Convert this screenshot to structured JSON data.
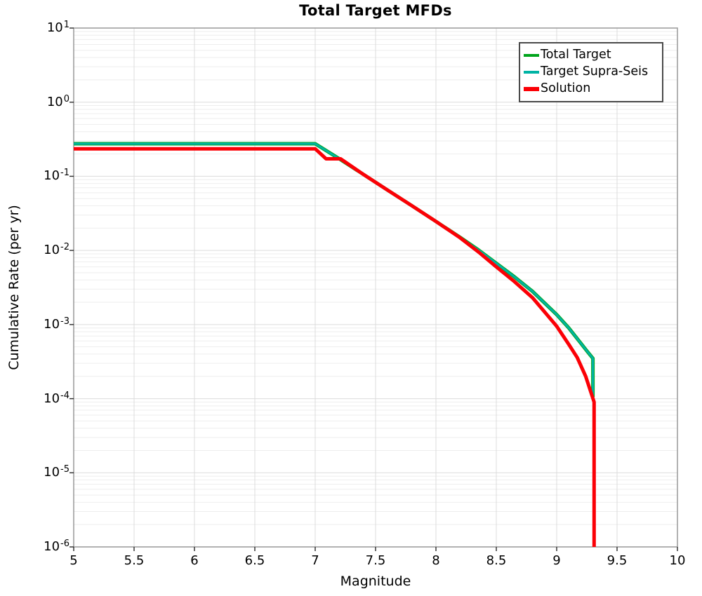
{
  "title": "Total Target MFDs",
  "axes": {
    "xlabel": "Magnitude",
    "ylabel": "Cumulative Rate (per yr)",
    "x_tick_labels": [
      "5",
      "5.5",
      "6",
      "6.5",
      "7",
      "7.5",
      "8",
      "8.5",
      "9",
      "9.5",
      "10"
    ],
    "x_tick_values": [
      5,
      5.5,
      6,
      6.5,
      7,
      7.5,
      8,
      8.5,
      9,
      9.5,
      10
    ],
    "y_tick_base": "10",
    "y_tick_exponents": [
      1,
      0,
      -1,
      -2,
      -3,
      -4,
      -5,
      -6
    ],
    "xlim": [
      5,
      10
    ],
    "ylim": [
      1e-06,
      10
    ],
    "y_scale": "log"
  },
  "legend": {
    "position": "top-right",
    "entries": [
      {
        "label": "Total Target",
        "color": "#00a41c",
        "swatch_height": 4
      },
      {
        "label": "Target Supra-Seis",
        "color": "#00b3a4",
        "swatch_height": 4
      },
      {
        "label": "Solution",
        "color": "#fb0006",
        "swatch_height": 6
      }
    ]
  },
  "colors": {
    "spine": "#9e9e9e",
    "grid_major": "#dcdcdc",
    "grid_minor": "#eeeeee",
    "tick": "#2a2a2a",
    "total_target": "#00a41c",
    "target_supra_seis": "#00b3a4",
    "solution": "#fb0006"
  },
  "chart_data": {
    "type": "line",
    "title": "Total Target MFDs",
    "xlabel": "Magnitude",
    "ylabel": "Cumulative Rate (per yr)",
    "x_scale": "linear",
    "y_scale": "log",
    "xlim": [
      5,
      10
    ],
    "ylim": [
      1e-06,
      10
    ],
    "grid": true,
    "legend_position": "top-right",
    "series": [
      {
        "name": "Total Target",
        "color": "#00a41c",
        "line_width": 5,
        "points": [
          [
            5.0,
            0.275
          ],
          [
            7.0,
            0.275
          ],
          [
            7.2,
            0.172
          ],
          [
            7.4,
            0.106
          ],
          [
            7.6,
            0.065
          ],
          [
            7.8,
            0.0402
          ],
          [
            8.0,
            0.0246
          ],
          [
            8.2,
            0.015
          ],
          [
            8.35,
            0.0102
          ],
          [
            8.5,
            0.0067
          ],
          [
            8.65,
            0.0044
          ],
          [
            8.8,
            0.0028
          ],
          [
            8.9,
            0.00195
          ],
          [
            9.0,
            0.00136
          ],
          [
            9.1,
            0.0009
          ],
          [
            9.2,
            0.00056
          ],
          [
            9.25,
            0.00044
          ],
          [
            9.3,
            0.00035
          ],
          [
            9.3,
            0.000105
          ]
        ]
      },
      {
        "name": "Target Supra-Seis",
        "color": "#00b3a4",
        "line_width": 3,
        "points": [
          [
            5.0,
            0.275
          ],
          [
            7.0,
            0.275
          ],
          [
            7.2,
            0.172
          ],
          [
            7.4,
            0.106
          ],
          [
            7.6,
            0.065
          ],
          [
            7.8,
            0.0402
          ],
          [
            8.0,
            0.0246
          ],
          [
            8.2,
            0.015
          ],
          [
            8.35,
            0.0102
          ],
          [
            8.5,
            0.0067
          ],
          [
            8.65,
            0.0044
          ],
          [
            8.8,
            0.0028
          ],
          [
            8.9,
            0.00195
          ],
          [
            9.0,
            0.00136
          ],
          [
            9.1,
            0.0009
          ],
          [
            9.2,
            0.00056
          ],
          [
            9.25,
            0.00044
          ],
          [
            9.3,
            0.00035
          ],
          [
            9.3,
            0.000105
          ]
        ]
      },
      {
        "name": "Solution",
        "color": "#fb0006",
        "line_width": 5,
        "points": [
          [
            5.0,
            0.235
          ],
          [
            7.0,
            0.235
          ],
          [
            7.09,
            0.172
          ],
          [
            7.21,
            0.172
          ],
          [
            7.4,
            0.106
          ],
          [
            7.6,
            0.065
          ],
          [
            7.8,
            0.0402
          ],
          [
            8.0,
            0.0246
          ],
          [
            8.2,
            0.0148
          ],
          [
            8.35,
            0.0096
          ],
          [
            8.5,
            0.006
          ],
          [
            8.65,
            0.0038
          ],
          [
            8.8,
            0.0023
          ],
          [
            8.9,
            0.00148
          ],
          [
            9.0,
            0.00095
          ],
          [
            9.1,
            0.00054
          ],
          [
            9.17,
            0.00036
          ],
          [
            9.24,
            0.0002
          ],
          [
            9.31,
            9e-05
          ],
          [
            9.31,
            1e-06
          ]
        ]
      }
    ]
  }
}
